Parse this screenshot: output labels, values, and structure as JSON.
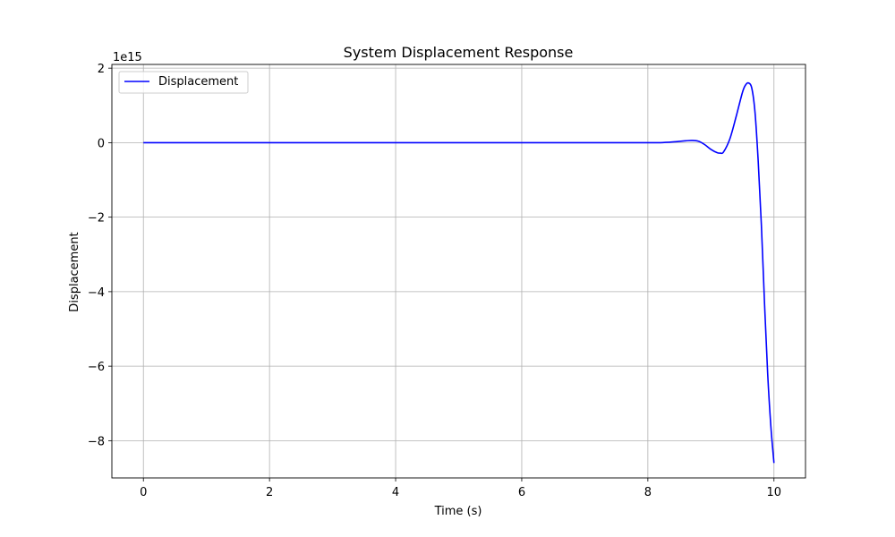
{
  "chart_data": {
    "type": "line",
    "title": "System Displacement Response",
    "xlabel": "Time (s)",
    "ylabel": "Displacement",
    "y_offset_label": "1e15",
    "y_scale": 1000000000000000.0,
    "xlim": [
      -0.5,
      10.5
    ],
    "ylim": [
      -9.0,
      2.1
    ],
    "x_ticks": [
      0,
      2,
      4,
      6,
      8,
      10
    ],
    "x_tick_labels": [
      "0",
      "2",
      "4",
      "6",
      "8",
      "10"
    ],
    "y_ticks": [
      2,
      0,
      -2,
      -4,
      -6,
      -8
    ],
    "y_tick_labels": [
      "2",
      "0",
      "−2",
      "−4",
      "−6",
      "−8"
    ],
    "grid": true,
    "legend_position": "upper-left",
    "colors": {
      "series": "#0000ff",
      "grid": "#b0b0b0",
      "axes": "#000000"
    },
    "series": [
      {
        "name": "Displacement",
        "x": [
          0,
          1,
          2,
          3,
          4,
          5,
          6,
          7,
          8,
          8.2,
          8.4,
          8.6,
          8.7,
          8.8,
          8.9,
          9.0,
          9.1,
          9.15,
          9.2,
          9.3,
          9.4,
          9.5,
          9.55,
          9.6,
          9.65,
          9.7,
          9.75,
          9.8,
          9.85,
          9.9,
          9.95,
          10.0
        ],
        "y": [
          0,
          0,
          0,
          0,
          0,
          0,
          0,
          0,
          0,
          0,
          0.02,
          0.05,
          0.06,
          0.04,
          -0.05,
          -0.18,
          -0.27,
          -0.28,
          -0.25,
          0.1,
          0.7,
          1.35,
          1.55,
          1.6,
          1.45,
          0.8,
          -0.5,
          -2.2,
          -4.3,
          -6.2,
          -7.6,
          -8.6
        ]
      }
    ]
  }
}
